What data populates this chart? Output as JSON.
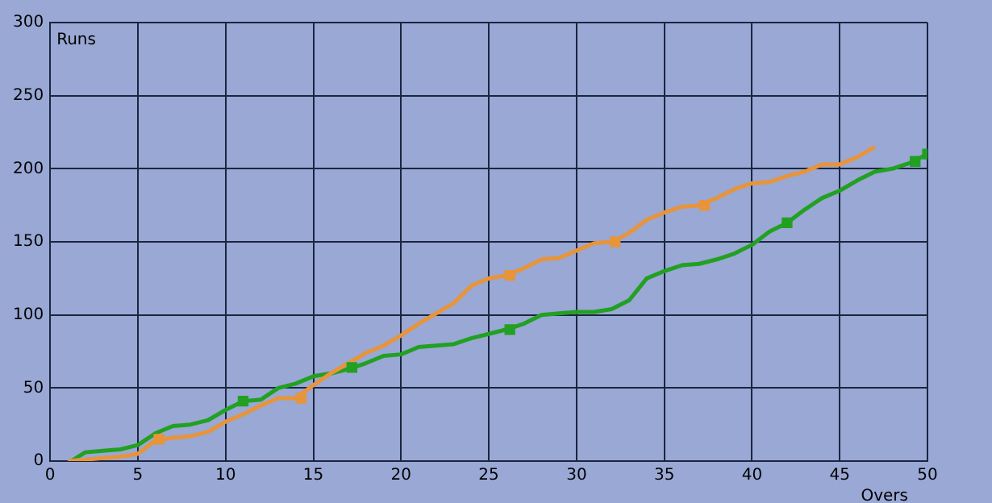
{
  "chart_data": {
    "type": "line",
    "xlabel": "Overs",
    "ylabel": "Runs",
    "xlim": [
      0,
      50
    ],
    "ylim": [
      0,
      300
    ],
    "xticks": [
      0,
      5,
      10,
      15,
      20,
      25,
      30,
      35,
      40,
      45,
      50
    ],
    "yticks": [
      0,
      50,
      100,
      150,
      200,
      250,
      300
    ],
    "grid": true,
    "legend": false,
    "line_style": "solid",
    "series": [
      {
        "type": "line",
        "color": "#e8943a",
        "marker": "none",
        "x": [
          1,
          2,
          3,
          4,
          5,
          6,
          7,
          8,
          9,
          10,
          11,
          12,
          13,
          14,
          15,
          16,
          17,
          18,
          19,
          20,
          21,
          22,
          23,
          24,
          25,
          26,
          27,
          28,
          29,
          30,
          31,
          32,
          33,
          34,
          35,
          36,
          37,
          38,
          39,
          40,
          41,
          42,
          43,
          44,
          45,
          46,
          47
        ],
        "values": [
          0,
          1,
          2,
          3,
          5,
          14,
          16,
          17,
          20,
          27,
          32,
          38,
          43,
          43,
          52,
          60,
          67,
          74,
          79,
          86,
          94,
          101,
          108,
          120,
          125,
          127,
          132,
          138,
          139,
          144,
          149,
          150,
          156,
          165,
          170,
          174,
          175,
          180,
          186,
          190,
          191,
          195,
          198,
          203,
          203,
          208,
          215
        ]
      },
      {
        "type": "line",
        "color": "#22a022",
        "marker": "none",
        "x": [
          1.2,
          2,
          3,
          4,
          5,
          6,
          7,
          8,
          9,
          10,
          11,
          12,
          13,
          14,
          15,
          16,
          17,
          18,
          19,
          20,
          21,
          22,
          23,
          24,
          25,
          26,
          27,
          28,
          29,
          30,
          31,
          32,
          33,
          34,
          35,
          36,
          37,
          38,
          39,
          40,
          41,
          42,
          43,
          44,
          45,
          46,
          47,
          48,
          49,
          50
        ],
        "values": [
          0,
          6,
          7,
          8,
          11,
          19,
          24,
          25,
          28,
          35,
          41,
          42,
          50,
          53,
          58,
          60,
          63,
          67,
          72,
          73,
          78,
          79,
          80,
          84,
          87,
          90,
          94,
          100,
          101,
          102,
          102,
          104,
          110,
          125,
          130,
          134,
          135,
          138,
          142,
          148,
          157,
          163,
          172,
          180,
          185,
          192,
          198,
          200,
          204,
          210
        ]
      },
      {
        "type": "scatter",
        "color": "#e8943a",
        "marker": "square",
        "x": [
          6.2,
          14.3,
          26.2,
          32.2,
          37.3
        ],
        "values": [
          15,
          43,
          127,
          150,
          175
        ]
      },
      {
        "type": "scatter",
        "color": "#22a022",
        "marker": "square",
        "x": [
          11,
          17.2,
          26.2,
          42,
          49.3,
          50
        ],
        "values": [
          41,
          64,
          90,
          163,
          205,
          210
        ]
      }
    ]
  }
}
